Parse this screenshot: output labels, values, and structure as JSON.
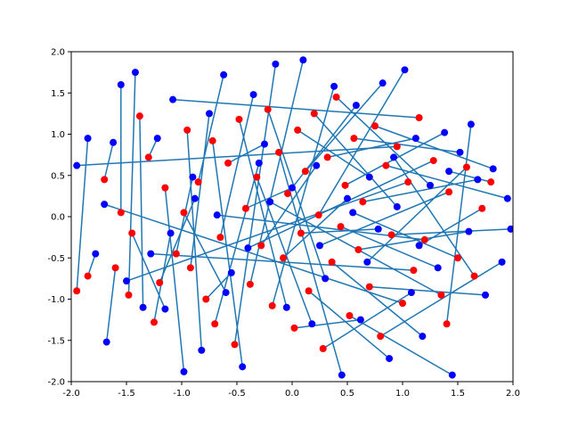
{
  "chart_data": {
    "type": "scatter",
    "title": "",
    "xlabel": "",
    "ylabel": "",
    "xlim": [
      -2,
      2
    ],
    "ylim": [
      -2,
      2
    ],
    "grid": false,
    "legend": "none",
    "x_ticks": [
      "-2.0",
      "-1.5",
      "-1.0",
      "-0.5",
      "0.0",
      "0.5",
      "1.0",
      "1.5",
      "2.0"
    ],
    "y_ticks": [
      "-2.0",
      "-1.5",
      "-1.0",
      "-0.5",
      "0.0",
      "0.5",
      "1.0",
      "1.5",
      "2.0"
    ],
    "colors": {
      "start_points": "#ff0000",
      "end_points": "#0000ff",
      "segments": "#1f77b4"
    },
    "series": [
      {
        "role": "segment start points (red)",
        "points": [
          [
            -1.95,
            -0.9
          ],
          [
            -1.85,
            -0.72
          ],
          [
            -1.6,
            -0.62
          ],
          [
            -1.55,
            0.05
          ],
          [
            -1.48,
            -0.95
          ],
          [
            -1.38,
            1.22
          ],
          [
            -1.3,
            0.72
          ],
          [
            -1.25,
            -1.28
          ],
          [
            -1.15,
            0.35
          ],
          [
            -1.05,
            -0.45
          ],
          [
            -0.95,
            1.05
          ],
          [
            -0.92,
            -0.62
          ],
          [
            -0.85,
            0.42
          ],
          [
            -0.78,
            -1.0
          ],
          [
            -0.72,
            0.92
          ],
          [
            -0.65,
            -0.25
          ],
          [
            -0.58,
            0.65
          ],
          [
            -0.52,
            -1.55
          ],
          [
            -0.48,
            1.18
          ],
          [
            -0.42,
            0.1
          ],
          [
            -0.38,
            -0.82
          ],
          [
            -0.32,
            0.48
          ],
          [
            -0.28,
            -0.35
          ],
          [
            -0.22,
            1.3
          ],
          [
            -0.18,
            -1.08
          ],
          [
            -0.12,
            0.78
          ],
          [
            -0.08,
            -0.5
          ],
          [
            -0.04,
            0.28
          ],
          [
            0.02,
            -1.35
          ],
          [
            0.05,
            1.05
          ],
          [
            0.08,
            -0.2
          ],
          [
            0.12,
            0.55
          ],
          [
            0.15,
            -0.9
          ],
          [
            0.2,
            1.25
          ],
          [
            0.24,
            0.02
          ],
          [
            0.28,
            -1.6
          ],
          [
            0.32,
            0.72
          ],
          [
            0.36,
            -0.55
          ],
          [
            0.4,
            1.45
          ],
          [
            0.44,
            -0.12
          ],
          [
            0.48,
            0.38
          ],
          [
            0.52,
            -1.2
          ],
          [
            0.56,
            0.95
          ],
          [
            0.6,
            -0.4
          ],
          [
            0.64,
            0.18
          ],
          [
            0.7,
            -0.85
          ],
          [
            0.75,
            1.1
          ],
          [
            0.8,
            -1.45
          ],
          [
            0.85,
            0.62
          ],
          [
            0.9,
            -0.22
          ],
          [
            0.95,
            0.85
          ],
          [
            1.0,
            -1.05
          ],
          [
            1.05,
            0.42
          ],
          [
            1.1,
            -0.65
          ],
          [
            1.15,
            1.2
          ],
          [
            1.2,
            -0.28
          ],
          [
            1.28,
            0.68
          ],
          [
            1.35,
            -0.95
          ],
          [
            1.42,
            0.3
          ],
          [
            1.5,
            -0.5
          ],
          [
            1.58,
            0.6
          ],
          [
            1.65,
            -0.72
          ],
          [
            1.72,
            0.1
          ],
          [
            1.8,
            0.42
          ],
          [
            1.4,
            -1.3
          ],
          [
            -1.7,
            0.45
          ],
          [
            -1.45,
            -0.2
          ],
          [
            -1.2,
            -0.8
          ],
          [
            -0.98,
            0.05
          ],
          [
            -0.7,
            -1.3
          ]
        ]
      },
      {
        "role": "segment end points (blue)",
        "points": [
          [
            -1.85,
            0.95
          ],
          [
            -1.78,
            -0.45
          ],
          [
            -1.68,
            -1.52
          ],
          [
            -1.55,
            1.6
          ],
          [
            -1.42,
            1.75
          ],
          [
            -1.35,
            -1.1
          ],
          [
            -1.22,
            0.95
          ],
          [
            -1.1,
            -0.2
          ],
          [
            -0.98,
            -1.88
          ],
          [
            -0.9,
            0.48
          ],
          [
            -0.82,
            -1.62
          ],
          [
            -0.75,
            1.25
          ],
          [
            -0.62,
            1.72
          ],
          [
            -0.55,
            -0.68
          ],
          [
            -0.45,
            -1.82
          ],
          [
            -0.35,
            1.48
          ],
          [
            -0.25,
            0.88
          ],
          [
            -0.15,
            1.85
          ],
          [
            -0.05,
            -1.1
          ],
          [
            0.0,
            0.35
          ],
          [
            0.1,
            1.9
          ],
          [
            0.18,
            -1.3
          ],
          [
            0.22,
            0.62
          ],
          [
            0.3,
            -0.75
          ],
          [
            0.38,
            1.58
          ],
          [
            0.45,
            -1.92
          ],
          [
            0.5,
            0.22
          ],
          [
            0.58,
            1.35
          ],
          [
            0.62,
            -1.25
          ],
          [
            0.7,
            0.48
          ],
          [
            0.78,
            -0.15
          ],
          [
            0.82,
            1.62
          ],
          [
            0.88,
            -1.72
          ],
          [
            0.95,
            0.12
          ],
          [
            1.02,
            1.78
          ],
          [
            1.08,
            -0.92
          ],
          [
            1.12,
            0.95
          ],
          [
            1.18,
            -1.45
          ],
          [
            1.25,
            0.38
          ],
          [
            1.32,
            -0.62
          ],
          [
            1.38,
            1.02
          ],
          [
            1.45,
            -1.92
          ],
          [
            1.52,
            0.78
          ],
          [
            1.6,
            -0.18
          ],
          [
            1.68,
            0.45
          ],
          [
            1.75,
            -0.95
          ],
          [
            1.82,
            0.58
          ],
          [
            1.9,
            -0.55
          ],
          [
            1.95,
            0.22
          ],
          [
            1.98,
            -0.15
          ],
          [
            -1.95,
            0.62
          ],
          [
            -1.7,
            0.15
          ],
          [
            -1.5,
            -0.78
          ],
          [
            -1.28,
            -0.45
          ],
          [
            -1.08,
            1.42
          ],
          [
            -0.68,
            0.02
          ],
          [
            -0.4,
            -0.38
          ],
          [
            -0.2,
            0.18
          ],
          [
            0.25,
            -0.35
          ],
          [
            0.55,
            0.05
          ],
          [
            0.68,
            -0.55
          ],
          [
            0.92,
            0.72
          ],
          [
            1.15,
            -0.35
          ],
          [
            1.42,
            0.55
          ],
          [
            1.62,
            1.12
          ],
          [
            -1.62,
            0.9
          ],
          [
            -1.15,
            -1.12
          ],
          [
            -0.88,
            0.22
          ],
          [
            -0.6,
            -0.92
          ],
          [
            -0.3,
            0.65
          ]
        ]
      }
    ],
    "segments_between": "each start point i connects to end point i"
  }
}
